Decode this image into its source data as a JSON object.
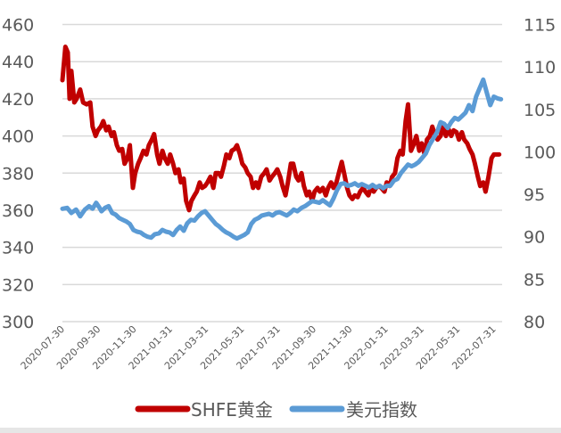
{
  "chart_data": {
    "type": "line",
    "title": "",
    "xlabel": "",
    "ylabel_left": "",
    "ylabel_right": "",
    "x_start_date": "2020-07-30",
    "x_end_day_index": 743,
    "x_ticks": [
      "2020-07-30",
      "2020-09-30",
      "2020-11-30",
      "2021-01-31",
      "2021-03-31",
      "2021-05-31",
      "2021-07-31",
      "2021-09-30",
      "2021-11-30",
      "2022-01-31",
      "2022-03-31",
      "2022-05-31",
      "2022-07-31"
    ],
    "y_left": {
      "min": 300,
      "max": 460,
      "step": 20,
      "ticks": [
        "300",
        "320",
        "340",
        "360",
        "380",
        "400",
        "420",
        "440",
        "460"
      ]
    },
    "y_right": {
      "min": 80,
      "max": 115,
      "step": 5,
      "ticks": [
        "80",
        "85",
        "90",
        "95",
        "100",
        "105",
        "110",
        "115"
      ]
    },
    "grid": true,
    "legend_position": "bottom",
    "series": [
      {
        "name": "SHFE黄金",
        "axis": "left",
        "color": "#C00000",
        "x_unit": "days since 2020-07-30",
        "points": [
          [
            0,
            430
          ],
          [
            5,
            448
          ],
          [
            9,
            445
          ],
          [
            12,
            420
          ],
          [
            15,
            435
          ],
          [
            20,
            418
          ],
          [
            24,
            420
          ],
          [
            30,
            425
          ],
          [
            35,
            418
          ],
          [
            41,
            417
          ],
          [
            47,
            418
          ],
          [
            51,
            405
          ],
          [
            56,
            400
          ],
          [
            60,
            403
          ],
          [
            65,
            405
          ],
          [
            69,
            408
          ],
          [
            74,
            403
          ],
          [
            78,
            405
          ],
          [
            83,
            400
          ],
          [
            87,
            402
          ],
          [
            92,
            395
          ],
          [
            96,
            392
          ],
          [
            101,
            393
          ],
          [
            105,
            385
          ],
          [
            110,
            388
          ],
          [
            114,
            395
          ],
          [
            119,
            372
          ],
          [
            123,
            380
          ],
          [
            128,
            385
          ],
          [
            132,
            388
          ],
          [
            137,
            392
          ],
          [
            142,
            390
          ],
          [
            146,
            395
          ],
          [
            151,
            398
          ],
          [
            155,
            401
          ],
          [
            160,
            390
          ],
          [
            164,
            385
          ],
          [
            169,
            392
          ],
          [
            173,
            388
          ],
          [
            178,
            385
          ],
          [
            182,
            390
          ],
          [
            187,
            385
          ],
          [
            191,
            380
          ],
          [
            196,
            382
          ],
          [
            200,
            375
          ],
          [
            205,
            377
          ],
          [
            209,
            365
          ],
          [
            214,
            360
          ],
          [
            218,
            365
          ],
          [
            223,
            368
          ],
          [
            227,
            370
          ],
          [
            232,
            375
          ],
          [
            236,
            372
          ],
          [
            241,
            373
          ],
          [
            245,
            375
          ],
          [
            250,
            378
          ],
          [
            255,
            372
          ],
          [
            259,
            380
          ],
          [
            264,
            380
          ],
          [
            268,
            378
          ],
          [
            273,
            384
          ],
          [
            277,
            390
          ],
          [
            282,
            388
          ],
          [
            286,
            392
          ],
          [
            291,
            393
          ],
          [
            295,
            395
          ],
          [
            300,
            390
          ],
          [
            304,
            385
          ],
          [
            309,
            383
          ],
          [
            313,
            380
          ],
          [
            318,
            378
          ],
          [
            322,
            372
          ],
          [
            327,
            375
          ],
          [
            331,
            372
          ],
          [
            336,
            378
          ],
          [
            341,
            380
          ],
          [
            345,
            382
          ],
          [
            350,
            376
          ],
          [
            354,
            378
          ],
          [
            359,
            380
          ],
          [
            363,
            382
          ],
          [
            368,
            378
          ],
          [
            372,
            373
          ],
          [
            377,
            368
          ],
          [
            381,
            375
          ],
          [
            386,
            385
          ],
          [
            390,
            385
          ],
          [
            395,
            378
          ],
          [
            399,
            376
          ],
          [
            404,
            380
          ],
          [
            408,
            373
          ],
          [
            413,
            368
          ],
          [
            417,
            370
          ],
          [
            422,
            365
          ],
          [
            426,
            370
          ],
          [
            431,
            372
          ],
          [
            435,
            370
          ],
          [
            440,
            372
          ],
          [
            445,
            368
          ],
          [
            449,
            372
          ],
          [
            454,
            375
          ],
          [
            458,
            372
          ],
          [
            463,
            375
          ],
          [
            467,
            380
          ],
          [
            472,
            386
          ],
          [
            476,
            380
          ],
          [
            481,
            372
          ],
          [
            485,
            368
          ],
          [
            490,
            366
          ],
          [
            494,
            368
          ],
          [
            499,
            367
          ],
          [
            503,
            370
          ],
          [
            508,
            372
          ],
          [
            512,
            370
          ],
          [
            517,
            368
          ],
          [
            521,
            372
          ],
          [
            526,
            370
          ],
          [
            530,
            372
          ],
          [
            535,
            373
          ],
          [
            539,
            372
          ],
          [
            544,
            370
          ],
          [
            548,
            375
          ],
          [
            553,
            373
          ],
          [
            557,
            378
          ],
          [
            562,
            380
          ],
          [
            566,
            388
          ],
          [
            571,
            392
          ],
          [
            575,
            390
          ],
          [
            580,
            408
          ],
          [
            584,
            417
          ],
          [
            589,
            392
          ],
          [
            593,
            395
          ],
          [
            598,
            400
          ],
          [
            603,
            392
          ],
          [
            607,
            396
          ],
          [
            612,
            390
          ],
          [
            616,
            398
          ],
          [
            621,
            400
          ],
          [
            625,
            405
          ],
          [
            630,
            400
          ],
          [
            634,
            398
          ],
          [
            639,
            400
          ],
          [
            643,
            405
          ],
          [
            648,
            400
          ],
          [
            652,
            404
          ],
          [
            657,
            400
          ],
          [
            661,
            403
          ],
          [
            666,
            402
          ],
          [
            670,
            398
          ],
          [
            675,
            402
          ],
          [
            679,
            398
          ],
          [
            684,
            396
          ],
          [
            688,
            393
          ],
          [
            693,
            390
          ],
          [
            697,
            385
          ],
          [
            702,
            378
          ],
          [
            706,
            373
          ],
          [
            711,
            375
          ],
          [
            715,
            370
          ],
          [
            720,
            378
          ],
          [
            725,
            388
          ],
          [
            729,
            390
          ],
          [
            734,
            390
          ],
          [
            738,
            390
          ]
        ]
      },
      {
        "name": "美元指数",
        "axis": "right",
        "color": "#5B9BD5",
        "x_unit": "days since 2020-07-30",
        "points": [
          [
            0,
            93.3
          ],
          [
            8,
            93.4
          ],
          [
            15,
            92.8
          ],
          [
            23,
            93.2
          ],
          [
            30,
            92.4
          ],
          [
            38,
            93.2
          ],
          [
            45,
            93.6
          ],
          [
            51,
            93.3
          ],
          [
            57,
            94.0
          ],
          [
            62,
            93.5
          ],
          [
            66,
            93.0
          ],
          [
            72,
            93.4
          ],
          [
            78,
            93.6
          ],
          [
            84,
            92.8
          ],
          [
            90,
            92.6
          ],
          [
            96,
            92.2
          ],
          [
            102,
            92.0
          ],
          [
            108,
            91.8
          ],
          [
            114,
            91.5
          ],
          [
            120,
            90.8
          ],
          [
            126,
            90.6
          ],
          [
            132,
            90.5
          ],
          [
            138,
            90.2
          ],
          [
            144,
            90.0
          ],
          [
            150,
            89.9
          ],
          [
            156,
            90.3
          ],
          [
            163,
            90.4
          ],
          [
            169,
            90.8
          ],
          [
            175,
            90.6
          ],
          [
            181,
            90.5
          ],
          [
            187,
            90.2
          ],
          [
            193,
            90.8
          ],
          [
            199,
            91.2
          ],
          [
            205,
            90.7
          ],
          [
            211,
            91.6
          ],
          [
            217,
            92.0
          ],
          [
            223,
            91.9
          ],
          [
            229,
            92.4
          ],
          [
            235,
            92.8
          ],
          [
            241,
            93.0
          ],
          [
            247,
            92.5
          ],
          [
            253,
            92.0
          ],
          [
            259,
            91.5
          ],
          [
            265,
            91.2
          ],
          [
            271,
            90.8
          ],
          [
            277,
            90.5
          ],
          [
            283,
            90.3
          ],
          [
            289,
            90.0
          ],
          [
            295,
            89.8
          ],
          [
            301,
            90.0
          ],
          [
            307,
            90.2
          ],
          [
            313,
            90.5
          ],
          [
            319,
            91.5
          ],
          [
            325,
            92.0
          ],
          [
            331,
            92.2
          ],
          [
            337,
            92.5
          ],
          [
            343,
            92.6
          ],
          [
            349,
            92.7
          ],
          [
            355,
            92.5
          ],
          [
            361,
            92.8
          ],
          [
            367,
            92.9
          ],
          [
            373,
            92.7
          ],
          [
            379,
            92.5
          ],
          [
            385,
            92.8
          ],
          [
            391,
            93.2
          ],
          [
            397,
            93.0
          ],
          [
            404,
            93.4
          ],
          [
            410,
            93.6
          ],
          [
            416,
            93.9
          ],
          [
            422,
            94.2
          ],
          [
            428,
            94.1
          ],
          [
            434,
            94.0
          ],
          [
            440,
            94.3
          ],
          [
            446,
            94.0
          ],
          [
            452,
            93.7
          ],
          [
            458,
            94.5
          ],
          [
            464,
            95.5
          ],
          [
            470,
            96.2
          ],
          [
            476,
            96.3
          ],
          [
            482,
            96.0
          ],
          [
            488,
            96.1
          ],
          [
            494,
            96.3
          ],
          [
            500,
            96.0
          ],
          [
            506,
            96.2
          ],
          [
            512,
            96.0
          ],
          [
            518,
            95.8
          ],
          [
            524,
            96.1
          ],
          [
            530,
            95.8
          ],
          [
            536,
            96.0
          ],
          [
            542,
            95.7
          ],
          [
            548,
            96.0
          ],
          [
            554,
            96.0
          ],
          [
            560,
            96.6
          ],
          [
            566,
            96.8
          ],
          [
            572,
            97.5
          ],
          [
            578,
            98.0
          ],
          [
            584,
            98.5
          ],
          [
            590,
            98.3
          ],
          [
            596,
            98.5
          ],
          [
            602,
            98.8
          ],
          [
            608,
            99.3
          ],
          [
            614,
            99.8
          ],
          [
            620,
            100.8
          ],
          [
            626,
            101.5
          ],
          [
            633,
            102.3
          ],
          [
            639,
            103.5
          ],
          [
            645,
            103.3
          ],
          [
            651,
            102.8
          ],
          [
            657,
            103.5
          ],
          [
            663,
            104.0
          ],
          [
            669,
            103.8
          ],
          [
            675,
            104.2
          ],
          [
            681,
            104.6
          ],
          [
            687,
            105.5
          ],
          [
            693,
            104.8
          ],
          [
            699,
            106.5
          ],
          [
            705,
            107.5
          ],
          [
            711,
            108.5
          ],
          [
            717,
            107.0
          ],
          [
            723,
            105.5
          ],
          [
            729,
            106.5
          ],
          [
            735,
            106.3
          ],
          [
            741,
            106.2
          ]
        ]
      }
    ],
    "legend": [
      {
        "label": "SHFE黄金",
        "color": "#C00000"
      },
      {
        "label": "美元指数",
        "color": "#5B9BD5"
      }
    ]
  }
}
